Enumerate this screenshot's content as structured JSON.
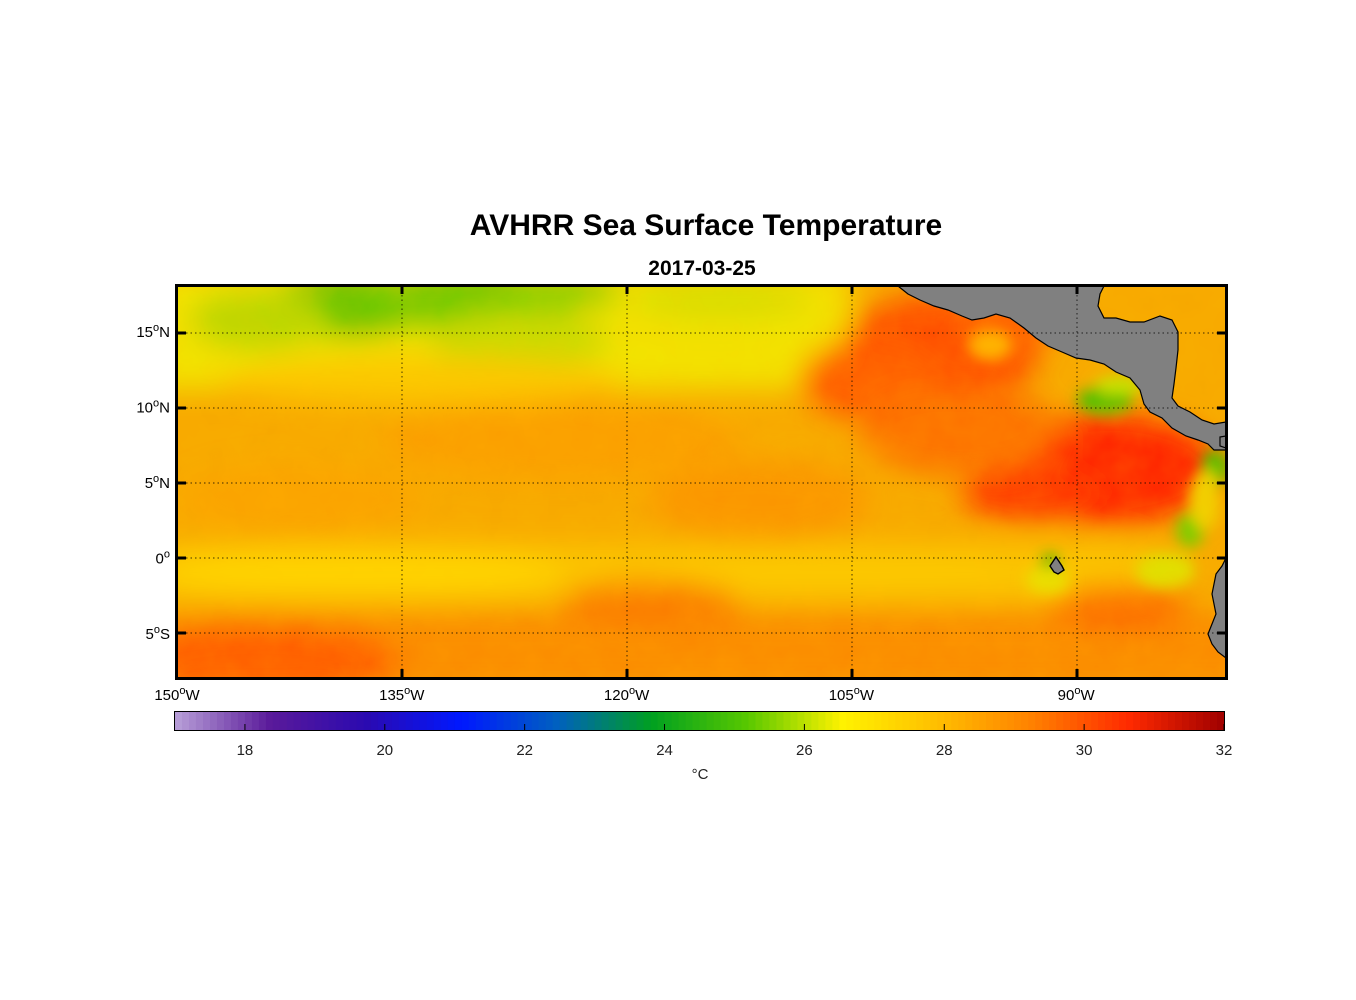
{
  "chart_data": {
    "type": "heatmap",
    "title": "AVHRR Sea Surface Temperature",
    "subtitle": "2017-03-25",
    "variable": "Sea surface temperature",
    "x_range_lon": [
      -150,
      -80
    ],
    "y_range_lat": [
      -8,
      18
    ],
    "x_ticks": [
      {
        "value": -150,
        "num": "150",
        "hem": "W"
      },
      {
        "value": -135,
        "num": "135",
        "hem": "W"
      },
      {
        "value": -120,
        "num": "120",
        "hem": "W"
      },
      {
        "value": -105,
        "num": "105",
        "hem": "W"
      },
      {
        "value": -90,
        "num": "90",
        "hem": "W"
      }
    ],
    "y_ticks": [
      {
        "value": 15,
        "num": "15",
        "hem": "N"
      },
      {
        "value": 10,
        "num": "10",
        "hem": "N"
      },
      {
        "value": 5,
        "num": "5",
        "hem": "N"
      },
      {
        "value": 0,
        "num": "0",
        "hem": ""
      },
      {
        "value": -5,
        "num": "5",
        "hem": "S"
      }
    ],
    "grid": true,
    "colorbar": {
      "range": [
        17,
        32
      ],
      "ticks": [
        18,
        20,
        22,
        24,
        26,
        28,
        30,
        32
      ],
      "label": "°C",
      "colormap": [
        "#b8a0d8",
        "#5a1a9a",
        "#2b0ab0",
        "#0018ff",
        "#0060c0",
        "#00a020",
        "#58c800",
        "#fff200",
        "#ffbe00",
        "#ff8000",
        "#ff2a00",
        "#a00000"
      ]
    },
    "features": [
      {
        "name": "Central America land mass",
        "type": "land",
        "color": "#808080"
      },
      {
        "name": "Galapagos Islands",
        "type": "land",
        "color": "#808080"
      },
      {
        "name": "South America coast",
        "type": "land",
        "color": "#808080"
      }
    ]
  }
}
